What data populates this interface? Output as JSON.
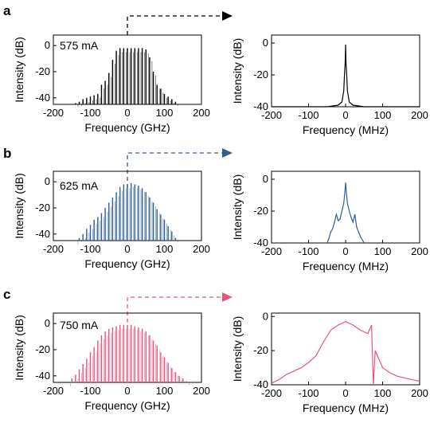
{
  "colors": {
    "a": "#000000",
    "b": "#2e5f94",
    "c": "#e8557a"
  },
  "rows": [
    {
      "panel": "a",
      "color_key": "a",
      "annotation": "575 mA",
      "left": {
        "xlabel": "Frequency (GHz)",
        "ylabel": "Intensity (dB)",
        "xticks": [
          "-200",
          "-100",
          "0",
          "100",
          "200"
        ],
        "yticks": [
          "0",
          "-20",
          "-40"
        ]
      },
      "right": {
        "xlabel": "Frequency (MHz)",
        "ylabel": "Intensity (dB)",
        "xticks": [
          "-200",
          "-100",
          "0",
          "100",
          "200"
        ],
        "yticks": [
          "0",
          "-20",
          "-40"
        ]
      }
    },
    {
      "panel": "b",
      "color_key": "b",
      "annotation": "625 mA",
      "left": {
        "xlabel": "Frequency (GHz)",
        "ylabel": "Intensity (dB)",
        "xticks": [
          "-200",
          "-100",
          "0",
          "100",
          "200"
        ],
        "yticks": [
          "0",
          "-20",
          "-40"
        ]
      },
      "right": {
        "xlabel": "Frequency (MHz)",
        "ylabel": "Intensity (dB)",
        "xticks": [
          "-200",
          "-100",
          "0",
          "100",
          "200"
        ],
        "yticks": [
          "0",
          "-20",
          "-40"
        ]
      }
    },
    {
      "panel": "c",
      "color_key": "c",
      "annotation": "750 mA",
      "left": {
        "xlabel": "Frequency (GHz)",
        "ylabel": "Intensity (dB)",
        "xticks": [
          "-200",
          "-100",
          "0",
          "100",
          "200"
        ],
        "yticks": [
          "0",
          "-20",
          "-40"
        ]
      },
      "right": {
        "xlabel": "Frequency (MHz)",
        "ylabel": "Intensity (dB)",
        "xticks": [
          "-200",
          "-100",
          "0",
          "100",
          "200"
        ],
        "yticks": [
          "0",
          "-20",
          "-40"
        ]
      }
    }
  ],
  "chart_data": [
    {
      "type": "bar",
      "panel": "a-left",
      "xlabel": "Frequency (GHz)",
      "ylabel": "Intensity (dB)",
      "xlim": [
        -200,
        200
      ],
      "ylim": [
        -45,
        8
      ],
      "x": [
        -140,
        -130,
        -120,
        -110,
        -100,
        -90,
        -80,
        -70,
        -60,
        -50,
        -40,
        -30,
        -20,
        -10,
        0,
        10,
        20,
        30,
        40,
        50,
        60,
        70,
        80,
        90,
        100,
        110,
        120,
        130
      ],
      "values": [
        -44,
        -43,
        -41,
        -40,
        -39,
        -38,
        -37,
        -30,
        -27,
        -21,
        -11,
        -4,
        -2,
        -2,
        -2,
        -2,
        -2,
        -2,
        -2,
        -3,
        -9,
        -20,
        -30,
        -33,
        -37,
        -39,
        -41,
        -43
      ]
    },
    {
      "type": "line",
      "panel": "a-right",
      "xlabel": "Frequency (MHz)",
      "ylabel": "Intensity (dB)",
      "xlim": [
        -200,
        200
      ],
      "ylim": [
        -40,
        5
      ],
      "x": [
        -200,
        -150,
        -100,
        -50,
        -20,
        -10,
        -5,
        -3,
        -1,
        0,
        1,
        3,
        5,
        10,
        20,
        50,
        100,
        150,
        200
      ],
      "values": [
        -40,
        -40,
        -40,
        -40,
        -39,
        -37,
        -30,
        -20,
        -12,
        -1,
        -12,
        -20,
        -30,
        -37,
        -39,
        -40,
        -40,
        -40,
        -40
      ]
    },
    {
      "type": "bar",
      "panel": "b-left",
      "xlabel": "Frequency (GHz)",
      "ylabel": "Intensity (dB)",
      "xlim": [
        -200,
        200
      ],
      "ylim": [
        -45,
        8
      ],
      "x": [
        -140,
        -130,
        -120,
        -110,
        -100,
        -90,
        -80,
        -70,
        -60,
        -50,
        -40,
        -30,
        -20,
        -10,
        0,
        10,
        20,
        30,
        40,
        50,
        60,
        70,
        80,
        90,
        100,
        110,
        120,
        130
      ],
      "values": [
        -45,
        -43,
        -40,
        -36,
        -33,
        -29,
        -27,
        -24,
        -20,
        -16,
        -12,
        -8,
        -4,
        -2,
        -2,
        -1,
        -2,
        -3,
        -5,
        -8,
        -12,
        -16,
        -21,
        -25,
        -29,
        -34,
        -38,
        -43
      ]
    },
    {
      "type": "line",
      "panel": "b-right",
      "xlabel": "Frequency (MHz)",
      "ylabel": "Intensity (dB)",
      "xlim": [
        -200,
        200
      ],
      "ylim": [
        -40,
        5
      ],
      "x": [
        -50,
        -45,
        -40,
        -35,
        -30,
        -25,
        -20,
        -15,
        -10,
        -5,
        -2,
        0,
        2,
        5,
        10,
        15,
        20,
        25,
        30,
        35,
        40,
        45,
        50
      ],
      "values": [
        -40,
        -37,
        -33,
        -31,
        -27,
        -22,
        -26,
        -25,
        -20,
        -15,
        -8,
        -2,
        -8,
        -15,
        -20,
        -24,
        -27,
        -22,
        -30,
        -33,
        -36,
        -38,
        -40
      ]
    },
    {
      "type": "bar",
      "panel": "c-left",
      "xlabel": "Frequency (GHz)",
      "ylabel": "Intensity (dB)",
      "xlim": [
        -200,
        200
      ],
      "ylim": [
        -45,
        8
      ],
      "x": [
        -160,
        -150,
        -140,
        -130,
        -120,
        -110,
        -100,
        -90,
        -80,
        -70,
        -60,
        -50,
        -40,
        -30,
        -20,
        -10,
        0,
        10,
        20,
        30,
        40,
        50,
        60,
        70,
        80,
        90,
        100,
        110,
        120,
        130,
        140,
        150,
        160
      ],
      "values": [
        -45,
        -42,
        -39,
        -35,
        -31,
        -27,
        -22,
        -18,
        -13,
        -9,
        -6,
        -4,
        -3,
        -2,
        -1,
        -1,
        -1,
        -1,
        -2,
        -3,
        -4,
        -6,
        -9,
        -13,
        -17,
        -22,
        -26,
        -30,
        -34,
        -37,
        -40,
        -42,
        -44
      ]
    },
    {
      "type": "line",
      "panel": "c-right",
      "xlabel": "Frequency (MHz)",
      "ylabel": "Intensity (dB)",
      "xlim": [
        -200,
        200
      ],
      "ylim": [
        -40,
        2
      ],
      "x": [
        -200,
        -180,
        -160,
        -140,
        -120,
        -100,
        -80,
        -60,
        -40,
        -20,
        0,
        20,
        40,
        60,
        70,
        75,
        80,
        90,
        100,
        120,
        140,
        160,
        180,
        200
      ],
      "values": [
        -39,
        -37,
        -34,
        -32,
        -30,
        -27,
        -23,
        -15,
        -8,
        -5,
        -3,
        -5,
        -8,
        -10,
        -5,
        -40,
        -20,
        -25,
        -30,
        -33,
        -35,
        -36,
        -37,
        -38
      ]
    }
  ]
}
